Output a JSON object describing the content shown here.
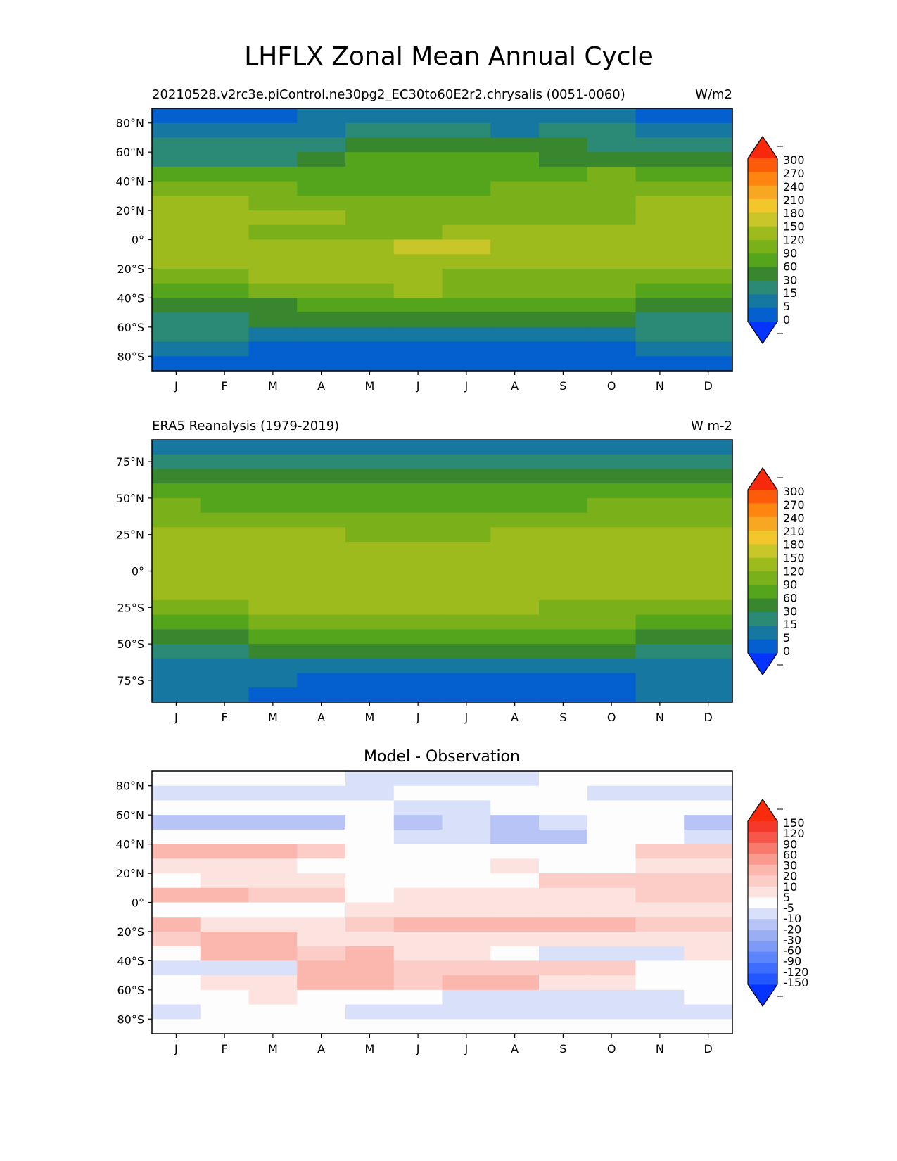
{
  "figure": {
    "title": "LHFLX Zonal Mean Annual Cycle"
  },
  "chart_data": [
    {
      "type": "heatmap",
      "name": "model",
      "title_left": "20210528.v2rc3e.piControl.ne30pg2_EC30to60E2r2.chrysalis (0051-0060)",
      "title_right": "W/m2",
      "xlabel": "",
      "ylabel": "",
      "x_categories": [
        "J",
        "F",
        "M",
        "A",
        "M",
        "J",
        "J",
        "A",
        "S",
        "O",
        "N",
        "D"
      ],
      "y_ticks": [
        {
          "value": 80,
          "label": "80°N"
        },
        {
          "value": 60,
          "label": "60°N"
        },
        {
          "value": 40,
          "label": "40°N"
        },
        {
          "value": 20,
          "label": "20°N"
        },
        {
          "value": 0,
          "label": "0°"
        },
        {
          "value": -20,
          "label": "20°S"
        },
        {
          "value": -40,
          "label": "40°S"
        },
        {
          "value": -60,
          "label": "60°S"
        },
        {
          "value": -80,
          "label": "80°S"
        }
      ],
      "ylim": [
        -90,
        90
      ],
      "lat_bands": [
        90,
        80,
        70,
        60,
        50,
        40,
        30,
        20,
        10,
        0,
        -10,
        -20,
        -30,
        -40,
        -50,
        -60,
        -70,
        -80,
        -90
      ],
      "values": [
        [
          0,
          2,
          2,
          5,
          5,
          8,
          5,
          5,
          5,
          5,
          2,
          2
        ],
        [
          10,
          10,
          10,
          10,
          15,
          15,
          15,
          10,
          15,
          15,
          10,
          10
        ],
        [
          20,
          20,
          20,
          25,
          35,
          45,
          45,
          45,
          35,
          25,
          25,
          20
        ],
        [
          25,
          25,
          25,
          35,
          60,
          65,
          65,
          65,
          55,
          45,
          45,
          40
        ],
        [
          60,
          60,
          60,
          70,
          80,
          75,
          75,
          80,
          80,
          90,
          75,
          60
        ],
        [
          110,
          100,
          90,
          80,
          75,
          75,
          85,
          90,
          100,
          100,
          110,
          105
        ],
        [
          130,
          125,
          115,
          100,
          95,
          95,
          105,
          110,
          115,
          115,
          130,
          130
        ],
        [
          140,
          140,
          135,
          130,
          115,
          105,
          110,
          115,
          115,
          115,
          135,
          135
        ],
        [
          120,
          120,
          115,
          115,
          115,
          115,
          120,
          120,
          120,
          120,
          120,
          120
        ],
        [
          135,
          135,
          135,
          135,
          145,
          150,
          150,
          140,
          135,
          130,
          130,
          135
        ],
        [
          130,
          130,
          135,
          135,
          135,
          135,
          135,
          135,
          130,
          125,
          125,
          125
        ],
        [
          110,
          115,
          120,
          125,
          125,
          125,
          100,
          110,
          110,
          100,
          110,
          110
        ],
        [
          80,
          80,
          90,
          100,
          110,
          120,
          105,
          100,
          95,
          90,
          80,
          80
        ],
        [
          50,
          50,
          55,
          60,
          70,
          70,
          70,
          70,
          70,
          60,
          55,
          50
        ],
        [
          25,
          25,
          30,
          35,
          40,
          40,
          40,
          40,
          35,
          30,
          25,
          25
        ],
        [
          15,
          15,
          10,
          10,
          10,
          8,
          8,
          8,
          8,
          10,
          15,
          15
        ],
        [
          5,
          5,
          3,
          2,
          2,
          1,
          1,
          1,
          1,
          2,
          5,
          5
        ],
        [
          2,
          2,
          0,
          0,
          0,
          0,
          0,
          0,
          0,
          0,
          2,
          2
        ]
      ],
      "colorbar": {
        "labels": [
          "300",
          "270",
          "240",
          "210",
          "180",
          "150",
          "120",
          "90",
          "60",
          "30",
          "15",
          "5",
          "0"
        ]
      }
    },
    {
      "type": "heatmap",
      "name": "obs",
      "title_left": "ERA5 Reanalysis (1979-2019)",
      "title_right": "W m-2",
      "xlabel": "",
      "ylabel": "",
      "x_categories": [
        "J",
        "F",
        "M",
        "A",
        "M",
        "J",
        "J",
        "A",
        "S",
        "O",
        "N",
        "D"
      ],
      "y_ticks": [
        {
          "value": 75,
          "label": "75°N"
        },
        {
          "value": 50,
          "label": "50°N"
        },
        {
          "value": 25,
          "label": "25°N"
        },
        {
          "value": 0,
          "label": "0°"
        },
        {
          "value": -25,
          "label": "25°S"
        },
        {
          "value": -50,
          "label": "50°S"
        },
        {
          "value": -75,
          "label": "75°S"
        }
      ],
      "ylim": [
        -90,
        90
      ],
      "lat_bands": [
        90,
        80,
        70,
        60,
        50,
        40,
        30,
        20,
        10,
        0,
        -10,
        -20,
        -30,
        -40,
        -50,
        -60,
        -70,
        -80,
        -90
      ],
      "values": [
        [
          5,
          5,
          5,
          8,
          12,
          12,
          12,
          12,
          5,
          5,
          5,
          5
        ],
        [
          15,
          15,
          15,
          15,
          25,
          20,
          20,
          20,
          25,
          25,
          15,
          15
        ],
        [
          30,
          30,
          30,
          35,
          50,
          55,
          55,
          55,
          45,
          35,
          35,
          30
        ],
        [
          60,
          60,
          60,
          60,
          70,
          70,
          70,
          70,
          70,
          60,
          60,
          60
        ],
        [
          100,
          80,
          75,
          70,
          70,
          70,
          70,
          75,
          80,
          90,
          95,
          95
        ],
        [
          115,
          110,
          100,
          95,
          90,
          90,
          95,
          100,
          105,
          110,
          115,
          115
        ],
        [
          140,
          135,
          125,
          120,
          115,
          115,
          115,
          120,
          120,
          120,
          135,
          140
        ],
        [
          130,
          130,
          125,
          120,
          120,
          125,
          125,
          120,
          120,
          120,
          125,
          130
        ],
        [
          120,
          120,
          120,
          120,
          120,
          120,
          120,
          120,
          120,
          120,
          120,
          120
        ],
        [
          135,
          135,
          135,
          135,
          140,
          145,
          145,
          140,
          135,
          135,
          135,
          135
        ],
        [
          125,
          125,
          130,
          135,
          135,
          135,
          135,
          135,
          130,
          125,
          125,
          125
        ],
        [
          110,
          115,
          120,
          125,
          125,
          125,
          125,
          120,
          115,
          110,
          110,
          110
        ],
        [
          80,
          85,
          90,
          95,
          100,
          100,
          100,
          100,
          95,
          90,
          80,
          80
        ],
        [
          55,
          55,
          60,
          65,
          70,
          70,
          70,
          70,
          65,
          60,
          55,
          55
        ],
        [
          25,
          25,
          30,
          40,
          45,
          45,
          45,
          45,
          40,
          35,
          25,
          25
        ],
        [
          12,
          12,
          12,
          10,
          10,
          10,
          10,
          10,
          10,
          12,
          12,
          12
        ],
        [
          5,
          5,
          5,
          3,
          3,
          3,
          3,
          3,
          3,
          3,
          5,
          5
        ],
        [
          8,
          8,
          3,
          3,
          3,
          3,
          3,
          3,
          3,
          3,
          8,
          8
        ]
      ],
      "colorbar": {
        "labels": [
          "300",
          "270",
          "240",
          "210",
          "180",
          "150",
          "120",
          "90",
          "60",
          "30",
          "15",
          "5",
          "0"
        ]
      }
    },
    {
      "type": "heatmap",
      "name": "diff",
      "title_center": "Model - Observation",
      "xlabel": "",
      "ylabel": "",
      "x_categories": [
        "J",
        "F",
        "M",
        "A",
        "M",
        "J",
        "J",
        "A",
        "S",
        "O",
        "N",
        "D"
      ],
      "y_ticks": [
        {
          "value": 80,
          "label": "80°N"
        },
        {
          "value": 60,
          "label": "60°N"
        },
        {
          "value": 40,
          "label": "40°N"
        },
        {
          "value": 20,
          "label": "20°N"
        },
        {
          "value": 0,
          "label": "0°"
        },
        {
          "value": -20,
          "label": "20°S"
        },
        {
          "value": -40,
          "label": "40°S"
        },
        {
          "value": -60,
          "label": "60°S"
        },
        {
          "value": -80,
          "label": "80°S"
        }
      ],
      "ylim": [
        -90,
        90
      ],
      "lat_bands": [
        90,
        80,
        70,
        60,
        50,
        40,
        30,
        20,
        10,
        0,
        -10,
        -20,
        -30,
        -40,
        -50,
        -60,
        -70,
        -80,
        -90
      ],
      "values": [
        [
          0,
          0,
          0,
          0,
          -8,
          -7,
          -7,
          -7,
          0,
          0,
          0,
          0
        ],
        [
          -8,
          -8,
          -8,
          -8,
          -8,
          -4,
          0,
          0,
          0,
          -7,
          -7,
          -8
        ],
        [
          -2,
          -5,
          -5,
          -5,
          0,
          -6,
          -6,
          0,
          0,
          0,
          -2,
          -3
        ],
        [
          -15,
          -15,
          -18,
          -12,
          -5,
          -12,
          -10,
          -12,
          -10,
          0,
          -4,
          -15
        ],
        [
          0,
          0,
          0,
          0,
          0,
          -6,
          -8,
          -20,
          -20,
          0,
          0,
          -6
        ],
        [
          22,
          22,
          26,
          10,
          0,
          0,
          0,
          0,
          0,
          0,
          12,
          12
        ],
        [
          8,
          8,
          6,
          4,
          0,
          0,
          0,
          8,
          0,
          0,
          8,
          8
        ],
        [
          4,
          6,
          6,
          6,
          0,
          4,
          4,
          4,
          10,
          10,
          12,
          12
        ],
        [
          20,
          20,
          18,
          14,
          0,
          8,
          8,
          6,
          6,
          8,
          16,
          18
        ],
        [
          4,
          4,
          4,
          4,
          6,
          8,
          8,
          8,
          8,
          8,
          8,
          8
        ],
        [
          20,
          8,
          8,
          8,
          18,
          20,
          20,
          20,
          20,
          20,
          12,
          10
        ],
        [
          10,
          22,
          22,
          8,
          6,
          6,
          6,
          6,
          6,
          6,
          6,
          6
        ],
        [
          0,
          22,
          26,
          18,
          20,
          6,
          6,
          4,
          -8,
          -6,
          -8,
          6
        ],
        [
          -6,
          -8,
          -8,
          26,
          20,
          14,
          16,
          18,
          14,
          14,
          4,
          4
        ],
        [
          4,
          6,
          8,
          20,
          20,
          12,
          20,
          20,
          6,
          8,
          0,
          0
        ],
        [
          0,
          0,
          6,
          0,
          0,
          0,
          -10,
          -8,
          -6,
          -6,
          -8,
          -4
        ],
        [
          -6,
          0,
          0,
          -4,
          -10,
          -10,
          -6,
          -6,
          -6,
          -8,
          -6,
          -6
        ],
        [
          0,
          0,
          0,
          0,
          0,
          0,
          0,
          0,
          0,
          0,
          0,
          0
        ]
      ],
      "colorbar": {
        "labels": [
          "150",
          "120",
          "90",
          "60",
          "30",
          "20",
          "10",
          "5",
          "-5",
          "-10",
          "-20",
          "-30",
          "-60",
          "-90",
          "-120",
          "-150"
        ]
      }
    }
  ]
}
